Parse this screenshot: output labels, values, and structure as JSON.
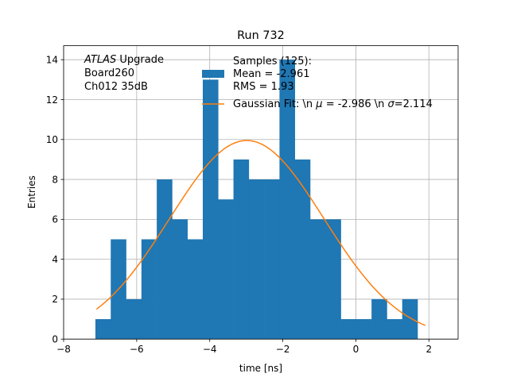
{
  "chart_data": {
    "type": "bar",
    "title": "Run 732",
    "xlabel": "time [ns]",
    "ylabel": "Entries",
    "xlim": [
      -8,
      2.8
    ],
    "ylim": [
      0,
      14.7
    ],
    "xticks": [
      -8,
      -6,
      -4,
      -2,
      0,
      2
    ],
    "yticks": [
      0,
      2,
      4,
      6,
      8,
      10,
      12,
      14
    ],
    "grid": true,
    "bin_edges": [
      -7.1,
      -6.68,
      -6.26,
      -5.84,
      -5.42,
      -5.0,
      -4.58,
      -4.16,
      -3.74,
      -3.32,
      -2.9,
      -2.48,
      -2.06,
      -1.64,
      -1.22,
      -0.8,
      -0.38,
      0.04,
      0.46,
      0.88,
      1.3,
      1.72,
      1.88
    ],
    "bin_edges_note_removed": true,
    "histogram": {
      "name": "Samples (125):",
      "edges": [
        -7.13,
        -6.71,
        -6.29,
        -5.87,
        -5.45,
        -5.03,
        -4.61,
        -4.19,
        -3.77,
        -3.35,
        -2.93,
        -2.51,
        -2.09,
        -1.67,
        -1.25,
        -0.83,
        -0.41,
        0.01,
        0.43,
        0.85,
        1.27,
        1.69,
        1.88
      ],
      "values": [
        1,
        5,
        2,
        5,
        8,
        6,
        5,
        13,
        7,
        9,
        8,
        8,
        14,
        9,
        6,
        6,
        1,
        1,
        2,
        1,
        2,
        0
      ],
      "color": "#1f77b4"
    },
    "fit": {
      "name": "Gaussian Fit: \\n $\\mu$ = -2.986 \\n $\\sigma$=2.114",
      "mu": -2.986,
      "sigma": 2.114,
      "amplitude": 9.95,
      "x_range": [
        -7.1,
        1.9
      ],
      "color": "#ff7f0e"
    },
    "legend": {
      "placement": "top-right",
      "hist_lines": [
        "Samples (125):",
        " Mean = -2.961",
        " RMS = 1.93"
      ],
      "fit_label_prefix": "Gaussian Fit: \\n ",
      "fit_mu_sym": "μ",
      "fit_mu_text": " = -2.986 \\n ",
      "fit_sigma_sym": "σ",
      "fit_sigma_text": "=2.114"
    },
    "annotation": {
      "atlas": "ATLAS",
      "upgrade": " Upgrade",
      "line2": " Board260",
      "line3": " Ch012 35dB"
    }
  }
}
